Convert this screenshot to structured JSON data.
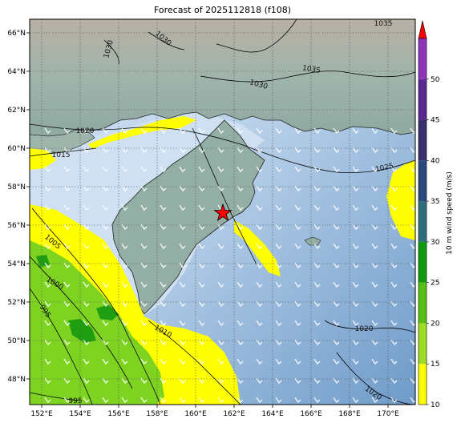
{
  "title": "Forecast of 2025112818 (f108)",
  "map": {
    "lon_ticks": [
      "152°E",
      "154°E",
      "156°E",
      "158°E",
      "160°E",
      "162°E",
      "164°E",
      "166°E",
      "168°E",
      "170°E"
    ],
    "lat_ticks": [
      "66°N",
      "64°N",
      "62°N",
      "60°N",
      "58°N",
      "56°N",
      "54°N",
      "52°N",
      "50°N",
      "48°N"
    ],
    "isobar_labels": [
      {
        "text": "1035"
      },
      {
        "text": "1035"
      },
      {
        "text": "1030"
      },
      {
        "text": "1030"
      },
      {
        "text": "1030"
      },
      {
        "text": "1020"
      },
      {
        "text": "1015"
      },
      {
        "text": "1025"
      },
      {
        "text": "1005"
      },
      {
        "text": "1000"
      },
      {
        "text": "995"
      },
      {
        "text": "1010"
      },
      {
        "text": "1020"
      },
      {
        "text": "1020"
      },
      {
        "text": "995"
      }
    ],
    "marker": {
      "symbol": "star",
      "color": "#ff0000",
      "lon": 161.6,
      "lat": 56.6
    }
  },
  "colorbar": {
    "label": "10 m wind speed (m/s)",
    "ticks": [
      "10",
      "15",
      "20",
      "25",
      "30",
      "35",
      "40",
      "45",
      "50"
    ],
    "colors": [
      "#ffff00",
      "#9fdc24",
      "#58c014",
      "#109a10",
      "#2e6e7a",
      "#29497e",
      "#3a2e6e",
      "#5a2a92",
      "#8f34b8"
    ],
    "extend_color": "#ff0000"
  },
  "colors": {
    "ocean_light": "#d4e4f4",
    "ocean_dark": "#7ea8d2",
    "land": "#9ab5aa",
    "wind_10_15": "#ffff00",
    "wind_15_20": "#7ed321",
    "wind_20_25": "#1f9e12"
  }
}
